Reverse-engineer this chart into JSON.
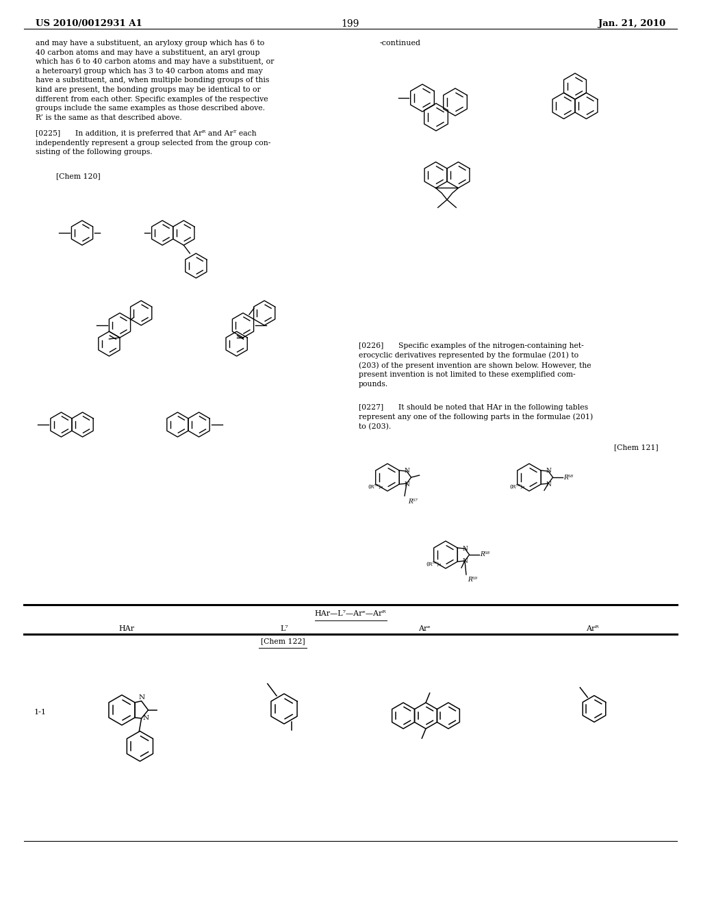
{
  "page_number": "199",
  "header_left": "US 2010/0012931 A1",
  "header_right": "Jan. 21, 2010",
  "background_color": "#ffffff",
  "body_text": "and may have a substituent, an aryloxy group which has 6 to\n40 carbon atoms and may have a substituent, an aryl group\nwhich has 6 to 40 carbon atoms and may have a substituent, or\na heteroaryl group which has 3 to 40 carbon atoms and may\nhave a substituent, and, when multiple bonding groups of this\nkind are present, the bonding groups may be identical to or\ndifferent from each other. Specific examples of the respective\ngroups include the same examples as those described above.\nR’ is the same as that described above.",
  "p0225": "[0225]  In addition, it is preferred that Arᴿ and Arᵀ each\nindependently represent a group selected from the group con-\nsisting of the following groups.",
  "chem120_label": "[Chem 120]",
  "continued_label": "-continued",
  "p0226": "[0226]  Specific examples of the nitrogen-containing het-\nerocyclic derivatives represented by the formulae (201) to\n(203) of the present invention are shown below. However, the\npresent invention is not limited to these exemplified com-\npounds.",
  "p0227": "[0227]  It should be noted that HAr in the following tables\nrepresent any one of the following parts in the formulae (201)\nto (203).",
  "chem121_label": "[Chem 121]",
  "chem122_label": "[Chem 122]",
  "table_formula": "HAr—L⁷—Arᵉ—Arᴿ",
  "col_HAr": "HAr",
  "col_L7": "L⁷",
  "col_Are": "Arᵉ",
  "col_Arf": "Arᴿ",
  "row1_label": "1-1"
}
